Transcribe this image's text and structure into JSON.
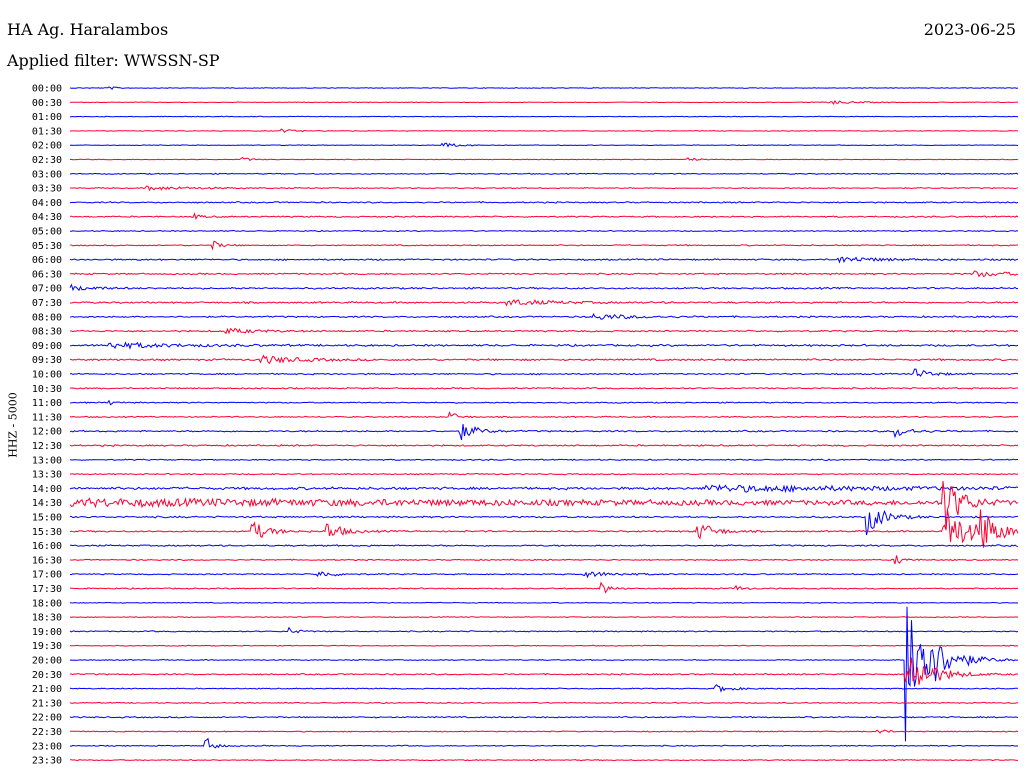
{
  "header": {
    "station": "HA Ag. Haralambos",
    "date": "2023-06-25",
    "filter": "Applied filter: WWSSN-SP"
  },
  "chart_data": {
    "type": "line",
    "title": "HA Ag. Haralambos",
    "ylabel": "HHZ - 5000",
    "row_interval_minutes": 30,
    "colors": [
      "#0000ff",
      "#ff0030"
    ],
    "rows": [
      "00:00",
      "00:30",
      "01:00",
      "01:30",
      "02:00",
      "02:30",
      "03:00",
      "03:30",
      "04:00",
      "04:30",
      "05:00",
      "05:30",
      "06:00",
      "06:30",
      "07:00",
      "07:30",
      "08:00",
      "08:30",
      "09:00",
      "09:30",
      "10:00",
      "10:30",
      "11:00",
      "11:30",
      "12:00",
      "12:30",
      "13:00",
      "13:30",
      "14:00",
      "14:30",
      "15:00",
      "15:30",
      "16:00",
      "16:30",
      "17:00",
      "17:30",
      "18:00",
      "18:30",
      "19:00",
      "19:30",
      "20:00",
      "20:30",
      "21:00",
      "21:30",
      "22:00",
      "22:30",
      "23:00",
      "23:30"
    ],
    "noise": [
      0.4,
      0.4,
      0.4,
      0.4,
      0.4,
      0.4,
      0.6,
      0.6,
      0.8,
      0.8,
      0.6,
      0.7,
      0.9,
      0.9,
      1.0,
      1.0,
      0.9,
      0.9,
      1.1,
      1.1,
      0.8,
      0.8,
      0.7,
      0.7,
      0.9,
      0.9,
      0.7,
      0.7,
      1.5,
      1.8,
      1.0,
      0.9,
      0.9,
      0.7,
      0.7,
      0.7,
      0.5,
      0.5,
      0.7,
      0.5,
      0.6,
      0.8,
      0.6,
      0.6,
      0.8,
      0.6,
      0.6,
      0.6
    ],
    "events": [
      {
        "row": 0,
        "t": 0.04,
        "amp": 2,
        "dur": 0.01
      },
      {
        "row": 1,
        "t": 0.8,
        "amp": 2,
        "dur": 0.03
      },
      {
        "row": 3,
        "t": 0.22,
        "amp": 2,
        "dur": 0.02
      },
      {
        "row": 4,
        "t": 0.39,
        "amp": 3,
        "dur": 0.02
      },
      {
        "row": 5,
        "t": 0.18,
        "amp": 3,
        "dur": 0.01
      },
      {
        "row": 5,
        "t": 0.65,
        "amp": 3,
        "dur": 0.01
      },
      {
        "row": 7,
        "t": 0.08,
        "amp": 2,
        "dur": 0.06
      },
      {
        "row": 9,
        "t": 0.13,
        "amp": 3,
        "dur": 0.01
      },
      {
        "row": 11,
        "t": 0.15,
        "amp": 5,
        "dur": 0.01
      },
      {
        "row": 12,
        "t": 0.81,
        "amp": 3,
        "dur": 0.05
      },
      {
        "row": 13,
        "t": 0.95,
        "amp": 3,
        "dur": 0.05
      },
      {
        "row": 14,
        "t": 0.0,
        "amp": 3,
        "dur": 0.03
      },
      {
        "row": 15,
        "t": 0.46,
        "amp": 3,
        "dur": 0.06
      },
      {
        "row": 16,
        "t": 0.55,
        "amp": 3,
        "dur": 0.05
      },
      {
        "row": 17,
        "t": 0.16,
        "amp": 3,
        "dur": 0.04
      },
      {
        "row": 18,
        "t": 0.04,
        "amp": 3,
        "dur": 0.08
      },
      {
        "row": 19,
        "t": 0.2,
        "amp": 4,
        "dur": 0.05
      },
      {
        "row": 20,
        "t": 0.89,
        "amp": 6,
        "dur": 0.02
      },
      {
        "row": 22,
        "t": 0.04,
        "amp": 3,
        "dur": 0.01
      },
      {
        "row": 23,
        "t": 0.4,
        "amp": 6,
        "dur": 0.01
      },
      {
        "row": 24,
        "t": 0.41,
        "amp": 10,
        "dur": 0.02
      },
      {
        "row": 24,
        "t": 0.87,
        "amp": 6,
        "dur": 0.02
      },
      {
        "row": 28,
        "t": 0.67,
        "amp": 3,
        "dur": 0.25
      },
      {
        "row": 29,
        "t": 0.0,
        "amp": 3,
        "dur": 0.99
      },
      {
        "row": 29,
        "t": 0.92,
        "amp": 34,
        "dur": 0.02
      },
      {
        "row": 30,
        "t": 0.84,
        "amp": 18,
        "dur": 0.02
      },
      {
        "row": 31,
        "t": 0.19,
        "amp": 12,
        "dur": 0.02
      },
      {
        "row": 31,
        "t": 0.27,
        "amp": 10,
        "dur": 0.02
      },
      {
        "row": 31,
        "t": 0.66,
        "amp": 12,
        "dur": 0.02
      },
      {
        "row": 31,
        "t": 0.92,
        "amp": 30,
        "dur": 0.03
      },
      {
        "row": 31,
        "t": 0.96,
        "amp": 22,
        "dur": 0.02
      },
      {
        "row": 33,
        "t": 0.87,
        "amp": 6,
        "dur": 0.01
      },
      {
        "row": 34,
        "t": 0.26,
        "amp": 4,
        "dur": 0.02
      },
      {
        "row": 34,
        "t": 0.54,
        "amp": 3,
        "dur": 0.04
      },
      {
        "row": 35,
        "t": 0.56,
        "amp": 8,
        "dur": 0.01
      },
      {
        "row": 35,
        "t": 0.7,
        "amp": 4,
        "dur": 0.01
      },
      {
        "row": 38,
        "t": 0.23,
        "amp": 4,
        "dur": 0.01
      },
      {
        "row": 40,
        "t": 0.88,
        "amp": 90,
        "dur": 0.03
      },
      {
        "row": 41,
        "t": 0.88,
        "amp": 30,
        "dur": 0.03
      },
      {
        "row": 42,
        "t": 0.68,
        "amp": 4,
        "dur": 0.02
      },
      {
        "row": 45,
        "t": 0.85,
        "amp": 4,
        "dur": 0.01
      },
      {
        "row": 46,
        "t": 0.14,
        "amp": 14,
        "dur": 0.01
      }
    ]
  }
}
